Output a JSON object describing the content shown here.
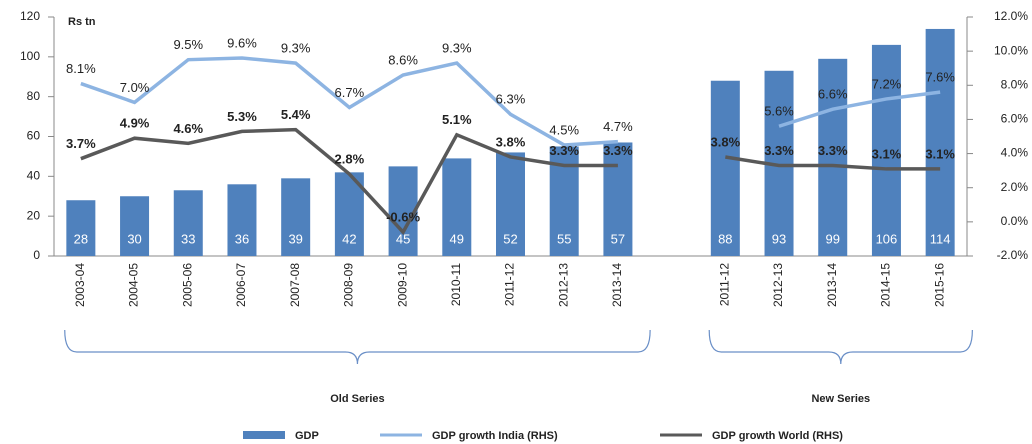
{
  "chart_data": {
    "type": "bar-line",
    "annotations": [
      "Rs tn"
    ],
    "categories": [
      "2003-04",
      "2004-05",
      "2005-06",
      "2006-07",
      "2007-08",
      "2008-09",
      "2009-10",
      "2010-11",
      "2011-12",
      "2012-13",
      "2013-14",
      null,
      "2011-12",
      "2012-13",
      "2013-14",
      "2014-15",
      "2015-16"
    ],
    "groups": [
      {
        "label": "Old Series"
      },
      {
        "label": "New Series"
      }
    ],
    "series": [
      {
        "name": "GDP",
        "type": "bar",
        "color": "#4f81bd",
        "values": [
          28,
          30,
          33,
          36,
          39,
          42,
          45,
          49,
          52,
          55,
          57,
          null,
          88,
          93,
          99,
          106,
          114
        ]
      },
      {
        "name": "GDP growth India (RHS)",
        "type": "line",
        "axis": "y2",
        "color": "#8db4e2",
        "values": [
          8.1,
          7.0,
          9.5,
          9.6,
          9.3,
          6.7,
          8.6,
          9.3,
          6.3,
          4.5,
          4.7,
          null,
          null,
          5.6,
          6.6,
          7.2,
          7.6
        ],
        "value_labels": [
          "8.1%",
          "7.0%",
          "9.5%",
          "9.6%",
          "9.3%",
          "6.7%",
          "8.6%",
          "9.3%",
          "6.3%",
          "4.5%",
          "4.7%",
          null,
          null,
          "5.6%",
          "6.6%",
          "7.2%",
          "7.6%"
        ]
      },
      {
        "name": "GDP growth World (RHS)",
        "type": "line",
        "axis": "y2",
        "color": "#595959",
        "values": [
          3.7,
          4.9,
          4.6,
          5.3,
          5.4,
          2.8,
          -0.6,
          5.1,
          3.8,
          3.3,
          3.3,
          null,
          3.8,
          3.3,
          3.3,
          3.1,
          3.1
        ],
        "value_labels": [
          "3.7%",
          "4.9%",
          "4.6%",
          "5.3%",
          "5.4%",
          "2.8%",
          "-0.6%",
          "5.1%",
          "3.8%",
          "3.3%",
          "3.3%",
          null,
          "3.8%",
          "3.3%",
          "3.3%",
          "3.1%",
          "3.1%"
        ]
      }
    ],
    "ylim": [
      0,
      120
    ],
    "yticks": [
      0,
      20,
      40,
      60,
      80,
      100,
      120
    ],
    "y2lim": [
      -2,
      12
    ],
    "y2ticks": [
      {
        "value": -2,
        "label": "-2.0%"
      },
      {
        "value": 0,
        "label": "0.0%"
      },
      {
        "value": 2,
        "label": "2.0%"
      },
      {
        "value": 4,
        "label": "4.0%"
      },
      {
        "value": 6,
        "label": "6.0%"
      },
      {
        "value": 8,
        "label": "8.0%"
      },
      {
        "value": 10,
        "label": "10.0%"
      },
      {
        "value": 12,
        "label": "12.0%"
      }
    ],
    "grid": false,
    "legend": "bottom"
  }
}
